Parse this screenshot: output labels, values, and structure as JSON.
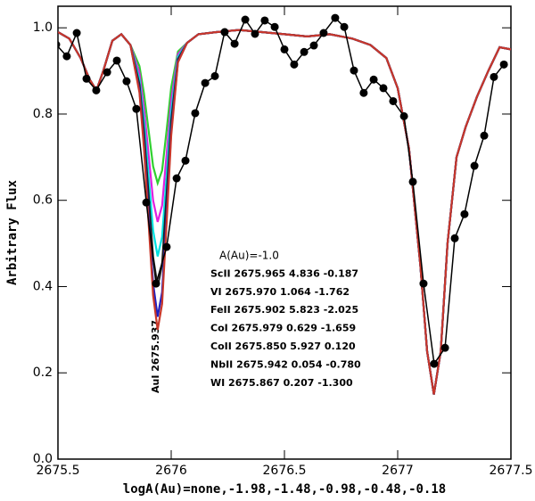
{
  "chart_data": {
    "type": "line",
    "xlabel": "logA(Au)=none,-1.98,-1.48,-0.98,-0.48,-0.18",
    "ylabel": "Arbitrary Flux",
    "line_label": "AuI 2675.937",
    "annotations": [
      "A(Au)=-1.0",
      "ScII 2675.965 4.836 -0.187",
      "VI  2675.970 1.064 -1.762",
      "FeII 2675.902 5.823 -2.025",
      "CoI  2675.979 0.629 -1.659",
      "CoII 2675.850 5.927 0.120",
      "NbII 2675.942 0.054 -0.780",
      "WI 2675.867 0.207 -1.300"
    ],
    "xlim": [
      2675.5,
      2677.5
    ],
    "xticks": [
      2675.5,
      2676,
      2676.5,
      2677,
      2677.5
    ],
    "ylim": [
      0,
      1.05
    ],
    "yticks": [
      {
        "value": 0,
        "label": "0.0"
      },
      0.2,
      0.4,
      0.6,
      0.8,
      {
        "value": 1,
        "label": "1.0"
      }
    ],
    "x": [
      2675.5,
      2675.55,
      2675.6,
      2675.64,
      2675.67,
      2675.7,
      2675.74,
      2675.78,
      2675.82,
      2675.86,
      2675.88,
      2675.9,
      2675.92,
      2675.94,
      2675.96,
      2675.98,
      2676.0,
      2676.03,
      2676.07,
      2676.12,
      2676.2,
      2676.3,
      2676.4,
      2676.5,
      2676.6,
      2676.7,
      2676.8,
      2676.88,
      2676.95,
      2677.0,
      2677.05,
      2677.1,
      2677.13,
      2677.16,
      2677.19,
      2677.22,
      2677.26,
      2677.3,
      2677.35,
      2677.4,
      2677.45,
      2677.5
    ],
    "series": [
      {
        "color": "#30d030",
        "values": [
          0.99,
          0.975,
          0.93,
          0.88,
          0.855,
          0.9,
          0.97,
          0.985,
          0.96,
          0.911,
          0.847,
          0.763,
          0.679,
          0.64,
          0.669,
          0.763,
          0.862,
          0.945,
          0.965,
          0.985,
          0.99,
          0.995,
          0.99,
          0.985,
          0.98,
          0.985,
          0.975,
          0.96,
          0.93,
          0.86,
          0.72,
          0.45,
          0.25,
          0.15,
          0.25,
          0.5,
          0.7,
          0.77,
          0.84,
          0.9,
          0.955,
          0.95
        ]
      },
      {
        "color": "#e020e0",
        "values": [
          0.99,
          0.975,
          0.93,
          0.88,
          0.855,
          0.9,
          0.97,
          0.985,
          0.96,
          0.895,
          0.813,
          0.707,
          0.6,
          0.55,
          0.588,
          0.707,
          0.832,
          0.939,
          0.965,
          0.985,
          0.99,
          0.995,
          0.99,
          0.985,
          0.98,
          0.985,
          0.975,
          0.96,
          0.93,
          0.86,
          0.72,
          0.45,
          0.25,
          0.15,
          0.25,
          0.5,
          0.7,
          0.77,
          0.84,
          0.9,
          0.955,
          0.95
        ]
      },
      {
        "color": "#00e0e0",
        "values": [
          0.99,
          0.975,
          0.93,
          0.88,
          0.855,
          0.9,
          0.97,
          0.985,
          0.96,
          0.88,
          0.784,
          0.657,
          0.53,
          0.47,
          0.515,
          0.657,
          0.806,
          0.933,
          0.965,
          0.985,
          0.99,
          0.995,
          0.99,
          0.985,
          0.98,
          0.985,
          0.975,
          0.96,
          0.93,
          0.86,
          0.72,
          0.45,
          0.25,
          0.15,
          0.25,
          0.5,
          0.7,
          0.77,
          0.84,
          0.9,
          0.955,
          0.95
        ]
      },
      {
        "color": "#202020",
        "values": [
          0.99,
          0.975,
          0.93,
          0.88,
          0.855,
          0.9,
          0.97,
          0.985,
          0.96,
          0.868,
          0.757,
          0.613,
          0.468,
          0.4,
          0.451,
          0.613,
          0.783,
          0.927,
          0.965,
          0.985,
          0.99,
          0.995,
          0.99,
          0.985,
          0.98,
          0.985,
          0.975,
          0.96,
          0.93,
          0.86,
          0.72,
          0.45,
          0.25,
          0.15,
          0.25,
          0.5,
          0.7,
          0.77,
          0.84,
          0.9,
          0.955,
          0.95
        ]
      },
      {
        "color": "#2020c0",
        "values": [
          0.99,
          0.975,
          0.93,
          0.88,
          0.855,
          0.9,
          0.97,
          0.985,
          0.96,
          0.855,
          0.731,
          0.569,
          0.407,
          0.33,
          0.387,
          0.569,
          0.76,
          0.922,
          0.965,
          0.985,
          0.99,
          0.995,
          0.99,
          0.985,
          0.98,
          0.985,
          0.975,
          0.96,
          0.93,
          0.86,
          0.72,
          0.45,
          0.25,
          0.15,
          0.25,
          0.5,
          0.7,
          0.77,
          0.84,
          0.9,
          0.955,
          0.95
        ]
      },
      {
        "color": "#c8372a",
        "values": [
          0.99,
          0.975,
          0.93,
          0.88,
          0.855,
          0.9,
          0.97,
          0.985,
          0.96,
          0.85,
          0.72,
          0.55,
          0.38,
          0.3,
          0.36,
          0.55,
          0.75,
          0.92,
          0.965,
          0.985,
          0.99,
          0.995,
          0.99,
          0.985,
          0.98,
          0.985,
          0.975,
          0.96,
          0.93,
          0.86,
          0.72,
          0.45,
          0.25,
          0.15,
          0.25,
          0.5,
          0.7,
          0.77,
          0.84,
          0.9,
          0.955,
          0.95
        ]
      },
      {
        "color": "#000000",
        "markers": true,
        "x": [
          2675.492,
          2675.539,
          2675.583,
          2675.626,
          2675.669,
          2675.717,
          2675.76,
          2675.803,
          2675.846,
          2675.89,
          2675.933,
          2675.98,
          2676.024,
          2676.063,
          2676.106,
          2676.15,
          2676.193,
          2676.236,
          2676.28,
          2676.327,
          2676.37,
          2676.413,
          2676.457,
          2676.5,
          2676.543,
          2676.587,
          2676.63,
          2676.673,
          2676.724,
          2676.764,
          2676.807,
          2676.85,
          2676.894,
          2676.937,
          2676.98,
          2677.028,
          2677.067,
          2677.114,
          2677.161,
          2677.209,
          2677.252,
          2677.295,
          2677.339,
          2677.382,
          2677.425,
          2677.469
        ],
        "values": [
          0.961,
          0.934,
          0.988,
          0.882,
          0.855,
          0.897,
          0.924,
          0.876,
          0.812,
          0.595,
          0.407,
          0.492,
          0.651,
          0.692,
          0.802,
          0.872,
          0.888,
          0.99,
          0.963,
          1.019,
          0.986,
          1.017,
          1.002,
          0.95,
          0.915,
          0.944,
          0.959,
          0.988,
          1.023,
          1.002,
          0.901,
          0.849,
          0.88,
          0.86,
          0.83,
          0.795,
          0.643,
          0.407,
          0.221,
          0.258,
          0.512,
          0.568,
          0.68,
          0.75,
          0.886,
          0.915
        ]
      }
    ]
  }
}
